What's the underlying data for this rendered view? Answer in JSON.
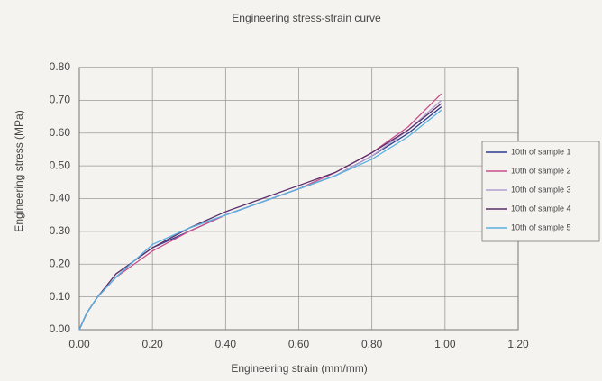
{
  "chart_data": {
    "type": "line",
    "title": "Engineering stress-strain curve",
    "x_label": "Engineering strain (mm/mm)",
    "y_label": "Engineering stress (MPa)",
    "x": [
      0,
      0.02,
      0.05,
      0.1,
      0.15,
      0.2,
      0.3,
      0.4,
      0.5,
      0.6,
      0.7,
      0.8,
      0.9,
      0.99
    ],
    "series": [
      {
        "name": "10th of sample 1",
        "color": "#2b3a8c",
        "values": [
          0,
          0.05,
          0.1,
          0.16,
          0.21,
          0.25,
          0.3,
          0.35,
          0.39,
          0.43,
          0.47,
          0.53,
          0.6,
          0.68
        ]
      },
      {
        "name": "10th of sample 2",
        "color": "#c8508a",
        "values": [
          0,
          0.05,
          0.1,
          0.16,
          0.2,
          0.24,
          0.3,
          0.35,
          0.39,
          0.43,
          0.48,
          0.54,
          0.62,
          0.72
        ]
      },
      {
        "name": "10th of sample 3",
        "color": "#b0a0d0",
        "values": [
          0,
          0.05,
          0.1,
          0.16,
          0.21,
          0.25,
          0.31,
          0.35,
          0.39,
          0.43,
          0.47,
          0.53,
          0.61,
          0.7
        ]
      },
      {
        "name": "10th of sample 4",
        "color": "#5a2d6a",
        "values": [
          0,
          0.05,
          0.1,
          0.17,
          0.21,
          0.25,
          0.31,
          0.36,
          0.4,
          0.44,
          0.48,
          0.54,
          0.61,
          0.69
        ]
      },
      {
        "name": "10th of sample 5",
        "color": "#58b0e0",
        "values": [
          0,
          0.05,
          0.1,
          0.16,
          0.21,
          0.26,
          0.31,
          0.35,
          0.39,
          0.43,
          0.47,
          0.52,
          0.59,
          0.67
        ]
      }
    ],
    "xlim": [
      0,
      1.2
    ],
    "xticks": [
      {
        "value": 0,
        "label": "0.00"
      },
      {
        "value": 0.2,
        "label": "0.20"
      },
      {
        "value": 0.4,
        "label": "0.40"
      },
      {
        "value": 0.6,
        "label": "0.60"
      },
      {
        "value": 0.8,
        "label": "0.80"
      },
      {
        "value": 1,
        "label": "1.00"
      },
      {
        "value": 1.2,
        "label": "1.20"
      }
    ],
    "ylim": [
      0,
      0.8
    ],
    "yticks": [
      {
        "value": 0,
        "label": "0.00"
      },
      {
        "value": 0.1,
        "label": "0.10"
      },
      {
        "value": 0.2,
        "label": "0.20"
      },
      {
        "value": 0.3,
        "label": "0.30"
      },
      {
        "value": 0.4,
        "label": "0.40"
      },
      {
        "value": 0.5,
        "label": "0.50"
      },
      {
        "value": 0.6,
        "label": "0.60"
      },
      {
        "value": 0.7,
        "label": "0.70"
      },
      {
        "value": 0.8,
        "label": "0.80"
      }
    ],
    "grid": true,
    "legend": "right"
  }
}
